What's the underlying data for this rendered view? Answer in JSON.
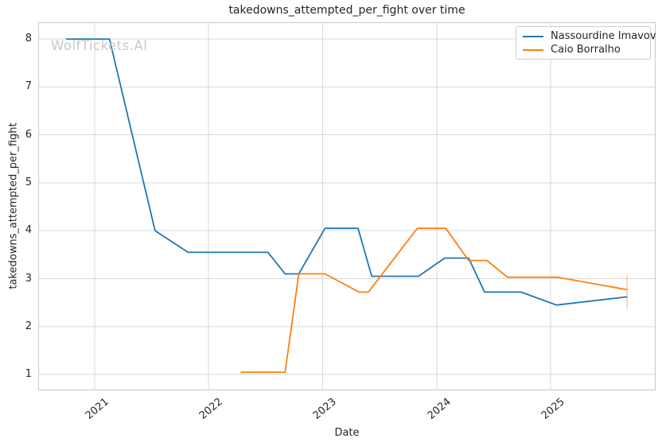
{
  "chart_data": {
    "type": "line",
    "title": "takedowns_attempted_per_fight over time",
    "xlabel": "Date",
    "ylabel": "takedowns_attempted_per_fight",
    "watermark": "WolfTickets.AI",
    "grid": true,
    "legend_position": "upper right",
    "xlim": [
      2020.505,
      2025.92
    ],
    "ylim": [
      0.67,
      8.35
    ],
    "x_ticks": [
      2021,
      2022,
      2023,
      2024,
      2025
    ],
    "y_ticks": [
      1,
      2,
      3,
      4,
      5,
      6,
      7,
      8
    ],
    "colors": {
      "background": "#ffffff",
      "grid": "#d9d9d9",
      "spine": "#c9c9c9",
      "text": "#262626",
      "watermark": "#c9c9c9"
    },
    "series": [
      {
        "name": "Nassourdine Imavov",
        "color": "#1f77b4",
        "points": [
          [
            2020.75,
            8.0
          ],
          [
            2021.13,
            8.0
          ],
          [
            2021.53,
            4.0
          ],
          [
            2021.82,
            3.55
          ],
          [
            2022.52,
            3.55
          ],
          [
            2022.67,
            3.1
          ],
          [
            2022.79,
            3.1
          ],
          [
            2023.02,
            4.05
          ],
          [
            2023.31,
            4.05
          ],
          [
            2023.43,
            3.05
          ],
          [
            2023.84,
            3.05
          ],
          [
            2024.07,
            3.43
          ],
          [
            2024.28,
            3.43
          ],
          [
            2024.42,
            2.72
          ],
          [
            2024.74,
            2.72
          ],
          [
            2025.05,
            2.45
          ],
          [
            2025.67,
            2.62
          ]
        ]
      },
      {
        "name": "Caio Borralho",
        "color": "#ff7f0e",
        "points": [
          [
            2022.28,
            1.05
          ],
          [
            2022.67,
            1.05
          ],
          [
            2022.79,
            3.1
          ],
          [
            2023.02,
            3.1
          ],
          [
            2023.32,
            2.72
          ],
          [
            2023.4,
            2.72
          ],
          [
            2023.83,
            4.05
          ],
          [
            2024.08,
            4.05
          ],
          [
            2024.28,
            3.38
          ],
          [
            2024.44,
            3.38
          ],
          [
            2024.62,
            3.03
          ],
          [
            2025.06,
            3.03
          ],
          [
            2025.67,
            2.77
          ]
        ],
        "error_bar": {
          "x": 2025.67,
          "low": 2.37,
          "high": 3.08,
          "color": "rgba(255,127,14,0.38)"
        }
      }
    ]
  }
}
